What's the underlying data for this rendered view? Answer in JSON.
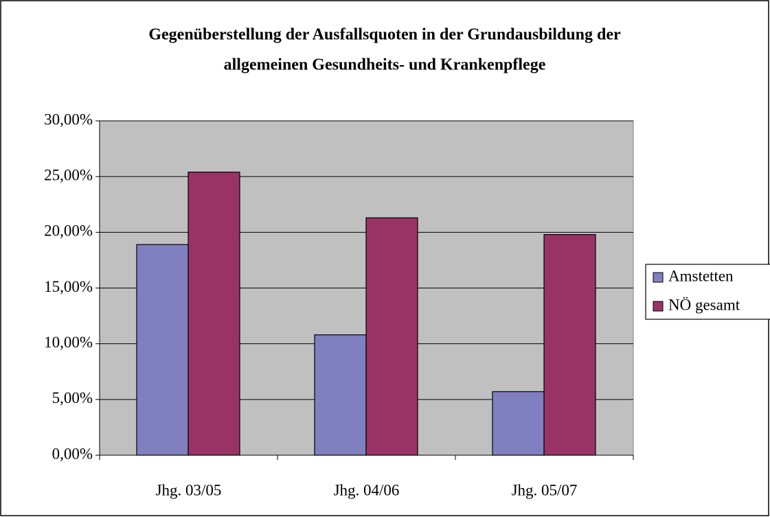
{
  "chart_data": {
    "type": "bar",
    "title": [
      "Gegenüberstellung der Ausfallsquoten in der Grundausbildung der",
      "allgemeinen Gesundheits- und Krankenpflege"
    ],
    "categories": [
      "Jhg. 03/05",
      "Jhg. 04/06",
      "Jhg. 05/07"
    ],
    "series": [
      {
        "name": "Amstetten",
        "color": "#8080c0",
        "values": [
          18.9,
          10.8,
          5.7
        ]
      },
      {
        "name": "NÖ gesamt",
        "color": "#993366",
        "values": [
          25.4,
          21.3,
          19.8
        ]
      }
    ],
    "ylim": [
      0,
      30
    ],
    "yticks": [
      {
        "value": 0,
        "label": "0,00%"
      },
      {
        "value": 5,
        "label": "5,00%"
      },
      {
        "value": 10,
        "label": "10,00%"
      },
      {
        "value": 15,
        "label": "15,00%"
      },
      {
        "value": 20,
        "label": "20,00%"
      },
      {
        "value": 25,
        "label": "25,00%"
      },
      {
        "value": 30,
        "label": "30,00%"
      }
    ],
    "grid": true,
    "legend": "right"
  }
}
